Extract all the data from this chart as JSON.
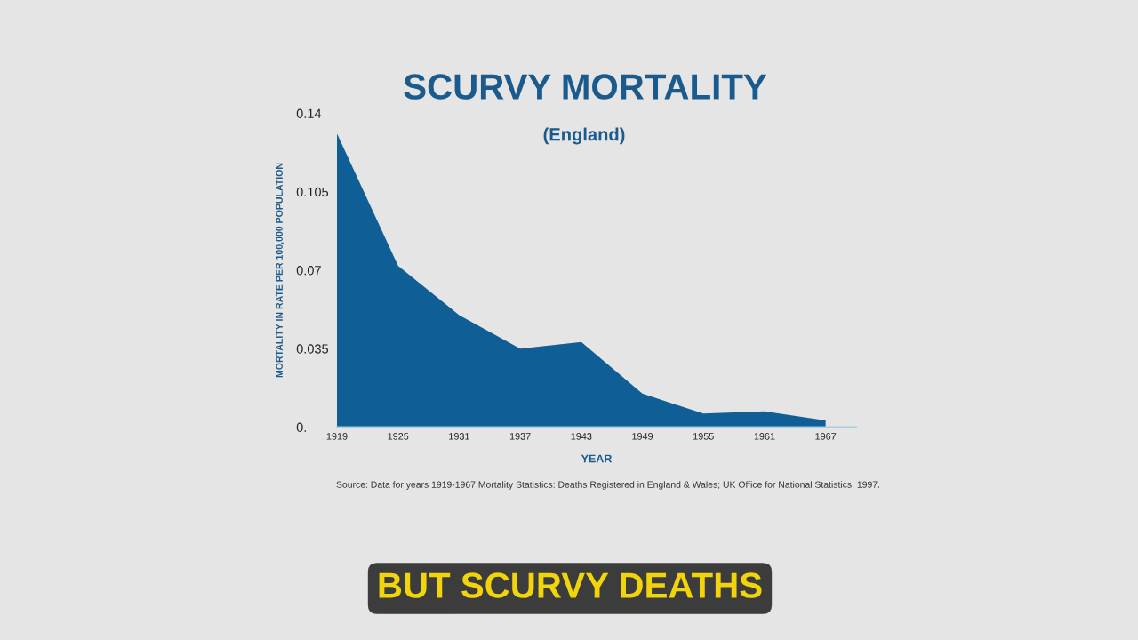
{
  "chart_data": {
    "type": "area",
    "title": "SCURVY MORTALITY",
    "subtitle": "(England)",
    "xlabel": "YEAR",
    "ylabel": "MORTALITY IN RATE PER 100,000 POPULATION",
    "x": [
      1919,
      1925,
      1931,
      1937,
      1943,
      1949,
      1955,
      1961,
      1967
    ],
    "series": [
      {
        "color": "#0f5f96",
        "values": [
          0.131,
          0.072,
          0.05,
          0.035,
          0.038,
          0.015,
          0.006,
          0.007,
          0.003
        ]
      }
    ],
    "xlim": [
      1919,
      1970
    ],
    "xticks": [
      1919,
      1925,
      1931,
      1937,
      1943,
      1949,
      1955,
      1961,
      1967
    ],
    "ylim": [
      0,
      0.14
    ],
    "yticks": [
      {
        "value": 0,
        "label": "0."
      },
      0.035,
      0.07,
      0.105,
      0.14
    ],
    "annotations": [
      "Source: Data for years 1919-1967 Mortality Statistics: Deaths Registered in England & Wales; UK Office for National Statistics, 1997.",
      "BUT SCURVY DEATHS"
    ]
  }
}
